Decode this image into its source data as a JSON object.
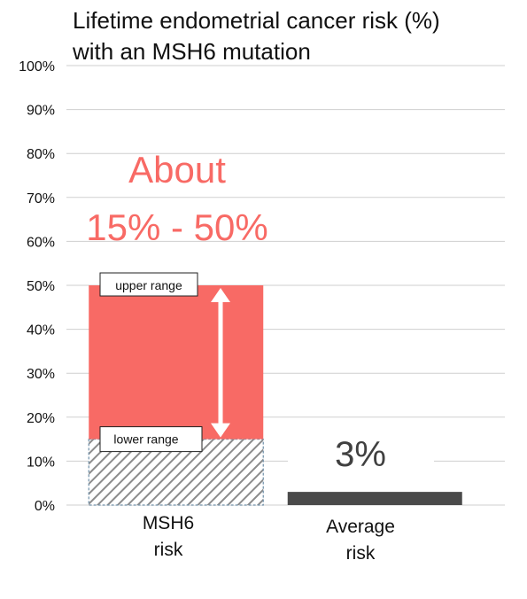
{
  "title_line1": "Lifetime endometrial cancer risk (%)",
  "title_line2": "with an MSH6 mutation",
  "chart_data": {
    "type": "bar",
    "title": "Lifetime endometrial cancer risk (%) with an MSH6 mutation",
    "categories": [
      "MSH6\nrisk",
      "Average\nrisk"
    ],
    "category_lines": [
      [
        "MSH6",
        "risk"
      ],
      [
        "Average",
        "risk"
      ]
    ],
    "y_ticks": [
      "0%",
      "10%",
      "20%",
      "30%",
      "40%",
      "50%",
      "60%",
      "70%",
      "80%",
      "90%",
      "100%"
    ],
    "ylim": [
      0,
      100
    ],
    "grid": true,
    "bars": [
      {
        "category": "MSH6",
        "lower": 15,
        "upper": 50,
        "lower_color": "#9a9a9a",
        "range_color": "#f86a65"
      },
      {
        "category": "Average",
        "value": 3,
        "color": "#4a4a4a"
      }
    ],
    "annotations": {
      "range_text_line1": "About",
      "range_text_line2": "15% - 50%",
      "range_text_color": "#f86a65",
      "upper_label": "upper range",
      "lower_label": "lower range",
      "average_value_label": "3%",
      "average_value_color": "#404040"
    }
  }
}
